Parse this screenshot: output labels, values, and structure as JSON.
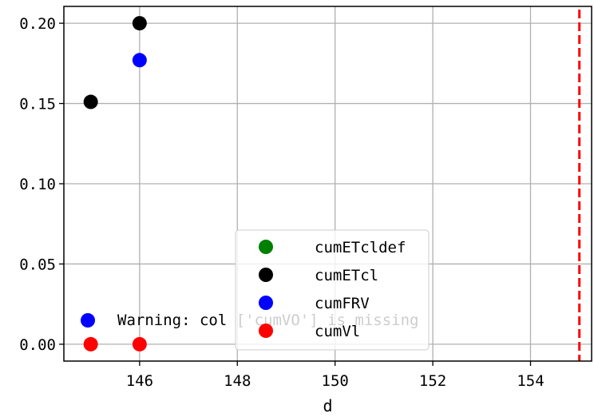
{
  "chart_data": {
    "type": "scatter",
    "xlabel": "d",
    "ylabel": "",
    "xlim": [
      144.45,
      155.25
    ],
    "ylim": [
      -0.0105,
      0.2105
    ],
    "xticks": [
      146,
      148,
      150,
      152,
      154
    ],
    "yticks": [
      0.0,
      0.05,
      0.1,
      0.15,
      0.2
    ],
    "xtick_labels": [
      "146",
      "148",
      "150",
      "152",
      "154"
    ],
    "ytick_labels": [
      "0.00",
      "0.05",
      "0.10",
      "0.15",
      "0.20"
    ],
    "grid": true,
    "legend_position": "lower center",
    "series": [
      {
        "name": "cumETcldef",
        "color": "#008000",
        "x": [],
        "y": []
      },
      {
        "name": "cumETcl",
        "color": "#000000",
        "x": [
          145,
          146
        ],
        "y": [
          0.151,
          0.2
        ]
      },
      {
        "name": "cumFRV",
        "color": "#0000ff",
        "x": [
          146
        ],
        "y": [
          0.177
        ]
      },
      {
        "name": "cumVl",
        "color": "#ff0000",
        "x": [
          145,
          146
        ],
        "y": [
          0.0,
          0.0
        ]
      }
    ],
    "vline": {
      "x": 155,
      "color": "#ff0000",
      "style": "dashed"
    },
    "annotation": {
      "text": "Warning: col ['cumVO'] is missing",
      "marker_color": "#0000ff"
    }
  }
}
